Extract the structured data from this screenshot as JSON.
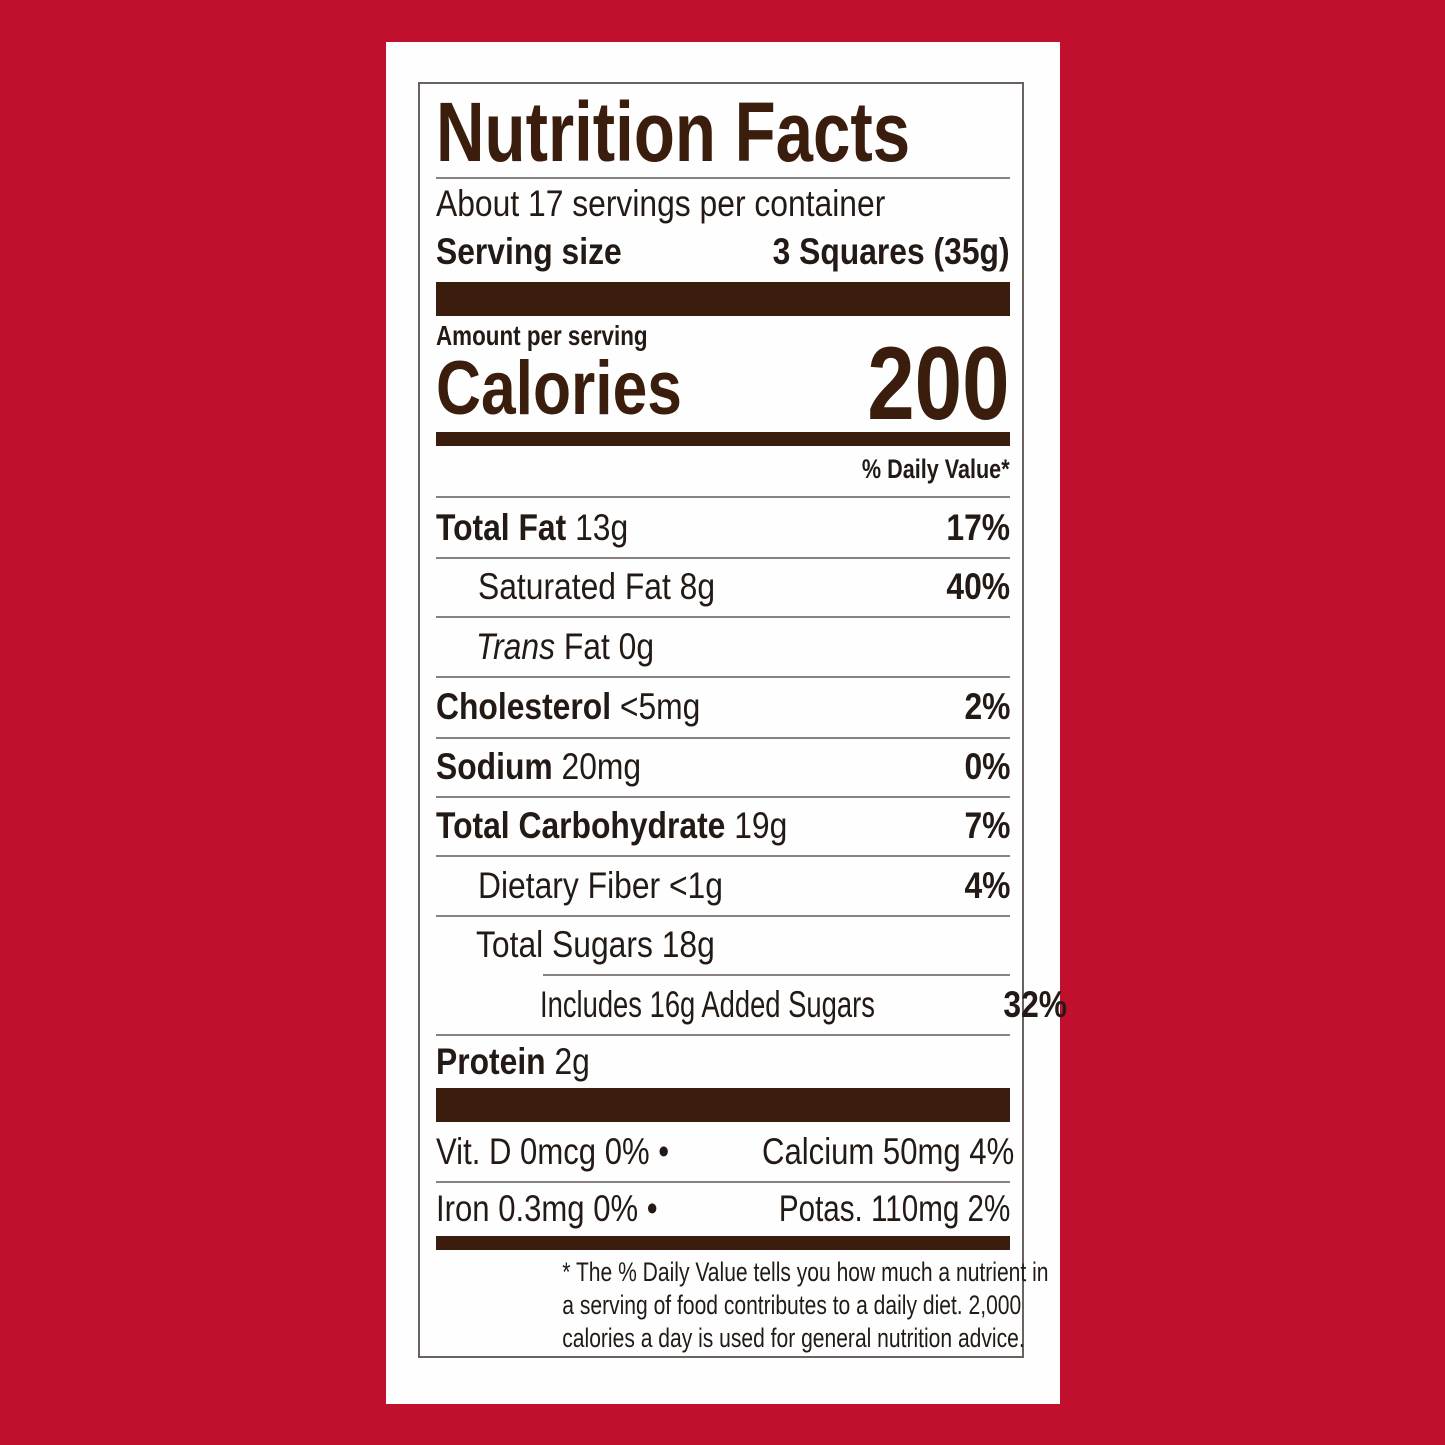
{
  "label": {
    "title": "Nutrition Facts",
    "servings": "About 17 servings per container",
    "serving_size_label": "Serving size",
    "serving_size_value": "3 Squares (35g)",
    "amount_per_serving": "Amount per serving",
    "calories_label": "Calories",
    "calories_value": "200",
    "daily_value_header": "% Daily Value*",
    "nutrients": [
      {
        "name": "Total Fat",
        "amount": "13g",
        "dv": "17%"
      },
      {
        "name": "Saturated Fat",
        "amount": "8g",
        "dv": "40%"
      },
      {
        "name_italic": "Trans",
        "name": "Fat",
        "amount": "0g",
        "dv": ""
      },
      {
        "name": "Cholesterol",
        "amount": "<5mg",
        "dv": "2%"
      },
      {
        "name": "Sodium",
        "amount": "20mg",
        "dv": "0%"
      },
      {
        "name": "Total Carbohydrate",
        "amount": "19g",
        "dv": "7%"
      },
      {
        "name": "Dietary Fiber",
        "amount": "<1g",
        "dv": "4%"
      },
      {
        "name": "Total Sugars",
        "amount": "18g",
        "dv": ""
      },
      {
        "name": "Includes 16g Added Sugars",
        "amount": "",
        "dv": "32%"
      },
      {
        "name": "Protein",
        "amount": "2g",
        "dv": ""
      }
    ],
    "vitamins_row1_left": "Vit. D 0mcg 0%",
    "vitamins_row1_right": "Calcium 50mg 4%",
    "vitamins_row2_left": "Iron 0.3mg 0%",
    "vitamins_row2_right": "Potas. 110mg 2%",
    "bullet": "•",
    "footnote": [
      "* The % Daily Value tells you how much a nutrient in",
      "a serving of food contributes to a daily diet. 2,000",
      "calories a day is used for general nutrition advice."
    ]
  },
  "colors": {
    "background": "#c1102e",
    "ink": "#3a1d0c",
    "card": "#fefefe"
  }
}
